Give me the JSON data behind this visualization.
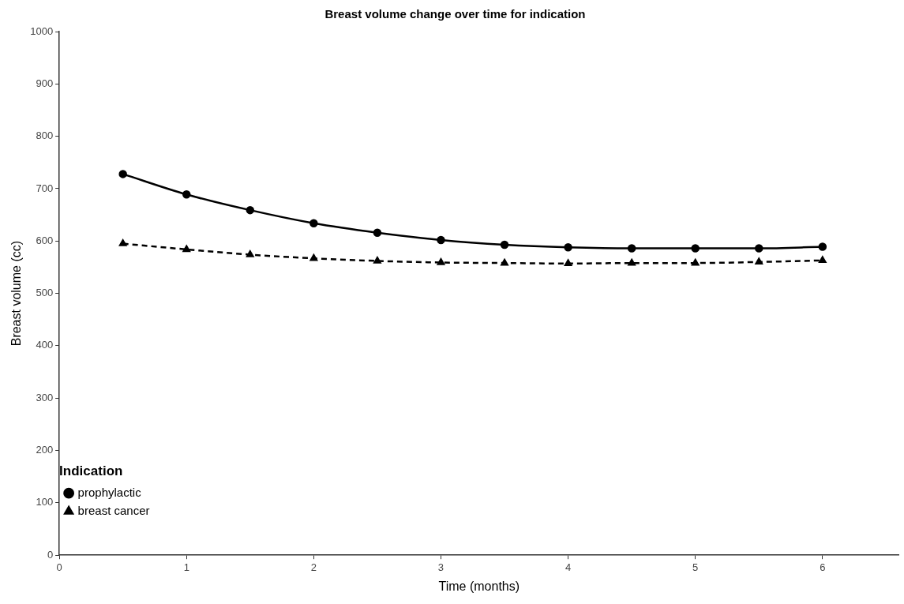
{
  "chart_data": {
    "type": "line",
    "title": "Breast volume change over time for indication",
    "xlabel": "Time (months)",
    "ylabel": "Breast volume (cc)",
    "legend_title": "Indication",
    "x": [
      0.5,
      1,
      1.5,
      2,
      2.5,
      3,
      3.5,
      4,
      4.5,
      5,
      5.5,
      6
    ],
    "series": [
      {
        "name": "prophylactic",
        "color": "#000000",
        "marker": "circle",
        "line_style": "solid",
        "values": [
          728,
          689,
          659,
          634,
          616,
          602,
          593,
          588,
          586,
          586,
          586,
          589
        ]
      },
      {
        "name": "breast cancer",
        "color": "#000000",
        "marker": "triangle",
        "line_style": "dashed",
        "values": [
          595,
          584,
          574,
          567,
          562,
          559,
          558,
          557,
          558,
          558,
          560,
          563
        ]
      }
    ],
    "xlim": [
      0,
      6.6
    ],
    "xticks": [
      0,
      1,
      2,
      3,
      4,
      5,
      6
    ],
    "ylim": [
      0,
      1000
    ],
    "yticks": [
      0,
      100,
      200,
      300,
      400,
      500,
      600,
      700,
      800,
      900,
      1000
    ],
    "grid": false,
    "legend": "bottom left"
  }
}
